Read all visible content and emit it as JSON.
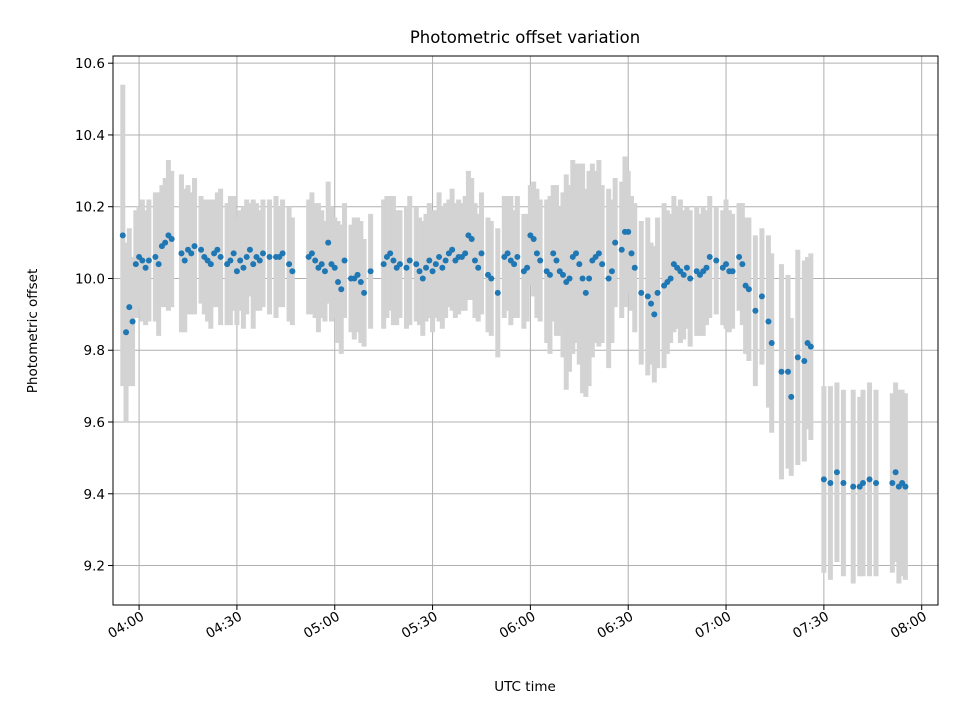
{
  "chart_data": {
    "type": "scatter",
    "title": "Photometric offset variation",
    "xlabel": "UTC time",
    "ylabel": "Photometric offset",
    "x_unit": "UTC time (HH:MM)",
    "xlim": [
      "03:52",
      "08:05"
    ],
    "ylim": [
      9.09,
      10.62
    ],
    "xticks": [
      "04:00",
      "04:30",
      "05:00",
      "05:30",
      "06:00",
      "06:30",
      "07:00",
      "07:30",
      "08:00"
    ],
    "yticks": [
      9.2,
      9.4,
      9.6,
      9.8,
      10.0,
      10.2,
      10.4,
      10.6
    ],
    "ytick_labels": [
      "9.2",
      "9.4",
      "9.6",
      "9.8",
      "10.0",
      "10.2",
      "10.4",
      "10.6"
    ],
    "grid": true,
    "colors": {
      "points": "#1f77b4",
      "errorbars": "#d3d3d3",
      "grid": "#b0b0b0"
    },
    "series": [
      {
        "x": [
          "03:55",
          "03:56",
          "03:57",
          "03:58",
          "03:59",
          "04:00",
          "04:01",
          "04:02",
          "04:03",
          "04:05",
          "04:06",
          "04:07",
          "04:08",
          "04:09",
          "04:10",
          "04:13",
          "04:14",
          "04:15",
          "04:16",
          "04:17",
          "04:19",
          "04:20",
          "04:21",
          "04:22",
          "04:23",
          "04:24",
          "04:25",
          "04:27",
          "04:28",
          "04:29",
          "04:30",
          "04:31",
          "04:32",
          "04:33",
          "04:34",
          "04:35",
          "04:36",
          "04:37",
          "04:38",
          "04:40",
          "04:42",
          "04:43",
          "04:44",
          "04:46",
          "04:47",
          "04:52",
          "04:53",
          "04:54",
          "04:55",
          "04:56",
          "04:57",
          "04:58",
          "04:59",
          "05:00",
          "05:01",
          "05:02",
          "05:03",
          "05:05",
          "05:06",
          "05:07",
          "05:08",
          "05:09",
          "05:11",
          "05:15",
          "05:16",
          "05:17",
          "05:18",
          "05:19",
          "05:20",
          "05:22",
          "05:23",
          "05:25",
          "05:26",
          "05:27",
          "05:28",
          "05:29",
          "05:30",
          "05:31",
          "05:32",
          "05:33",
          "05:34",
          "05:35",
          "05:36",
          "05:37",
          "05:38",
          "05:39",
          "05:40",
          "05:41",
          "05:42",
          "05:43",
          "05:44",
          "05:45",
          "05:47",
          "05:48",
          "05:50"
        ],
        "y": [
          10.12,
          9.85,
          9.92,
          9.88,
          10.04,
          10.06,
          10.05,
          10.03,
          10.05,
          10.06,
          10.04,
          10.09,
          10.1,
          10.12,
          10.11,
          10.07,
          10.05,
          10.08,
          10.07,
          10.09,
          10.08,
          10.06,
          10.05,
          10.04,
          10.07,
          10.08,
          10.06,
          10.04,
          10.05,
          10.07,
          10.02,
          10.05,
          10.03,
          10.06,
          10.08,
          10.04,
          10.06,
          10.05,
          10.07,
          10.06,
          10.06,
          10.06,
          10.07,
          10.04,
          10.02,
          10.06,
          10.07,
          10.05,
          10.03,
          10.04,
          10.02,
          10.1,
          10.04,
          10.03,
          9.99,
          9.97,
          10.05,
          10.0,
          10.0,
          10.01,
          9.99,
          9.96,
          10.02,
          10.04,
          10.06,
          10.07,
          10.05,
          10.03,
          10.04,
          10.03,
          10.05,
          10.04,
          10.02,
          10.0,
          10.03,
          10.05,
          10.02,
          10.04,
          10.06,
          10.03,
          10.05,
          10.07,
          10.08,
          10.05,
          10.06,
          10.06,
          10.07,
          10.12,
          10.11,
          10.05,
          10.03,
          10.07,
          10.01,
          10.0,
          9.96
        ],
        "yerr": [
          0.42,
          0.25,
          0.22,
          0.18,
          0.15,
          0.14,
          0.17,
          0.16,
          0.17,
          0.18,
          0.2,
          0.17,
          0.18,
          0.21,
          0.19,
          0.22,
          0.2,
          0.18,
          0.17,
          0.19,
          0.15,
          0.16,
          0.17,
          0.18,
          0.15,
          0.16,
          0.19,
          0.17,
          0.18,
          0.16,
          0.15,
          0.14,
          0.17,
          0.16,
          0.13,
          0.18,
          0.15,
          0.14,
          0.15,
          0.16,
          0.17,
          0.14,
          0.15,
          0.16,
          0.15,
          0.16,
          0.17,
          0.16,
          0.18,
          0.15,
          0.14,
          0.17,
          0.16,
          0.14,
          0.17,
          0.18,
          0.16,
          0.15,
          0.17,
          0.16,
          0.17,
          0.15,
          0.16,
          0.18,
          0.17,
          0.16,
          0.18,
          0.16,
          0.15,
          0.17,
          0.18,
          0.16,
          0.15,
          0.16,
          0.15,
          0.16,
          0.17,
          0.15,
          0.18,
          0.17,
          0.16,
          0.15,
          0.17,
          0.16,
          0.16,
          0.15,
          0.16,
          0.18,
          0.17,
          0.16,
          0.15,
          0.17,
          0.16,
          0.16,
          0.18
        ]
      },
      {
        "x": [
          "05:52",
          "05:53",
          "05:54",
          "05:55",
          "05:56",
          "05:58",
          "05:59",
          "06:00",
          "06:01",
          "06:02",
          "06:03",
          "06:05",
          "06:06",
          "06:07",
          "06:08",
          "06:09",
          "06:10",
          "06:11",
          "06:12",
          "06:13",
          "06:14",
          "06:15",
          "06:16",
          "06:17",
          "06:18",
          "06:19",
          "06:20",
          "06:21",
          "06:22",
          "06:24",
          "06:25",
          "06:26",
          "06:28",
          "06:29",
          "06:30",
          "06:31",
          "06:32",
          "06:34",
          "06:36",
          "06:37",
          "06:38",
          "06:39",
          "06:41",
          "06:42",
          "06:43",
          "06:44",
          "06:45",
          "06:46",
          "06:47",
          "06:48",
          "06:49",
          "06:51",
          "06:52",
          "06:53",
          "06:54",
          "06:55",
          "06:57",
          "06:59",
          "07:00",
          "07:01",
          "07:02",
          "07:04",
          "07:05",
          "07:06",
          "07:07",
          "07:09",
          "07:11",
          "07:13",
          "07:14",
          "07:17",
          "07:19",
          "07:20",
          "07:22",
          "07:24",
          "07:25",
          "07:26",
          "07:30",
          "07:32",
          "07:34",
          "07:36",
          "07:39",
          "07:41",
          "07:42",
          "07:44",
          "07:46",
          "07:51",
          "07:52",
          "07:53",
          "07:54",
          "07:55"
        ],
        "y": [
          10.06,
          10.07,
          10.05,
          10.04,
          10.06,
          10.02,
          10.03,
          10.12,
          10.11,
          10.07,
          10.05,
          10.02,
          10.01,
          10.07,
          10.05,
          10.02,
          10.01,
          9.99,
          10.0,
          10.06,
          10.07,
          10.04,
          10.0,
          9.96,
          10.0,
          10.05,
          10.06,
          10.07,
          10.04,
          10.0,
          10.02,
          10.1,
          10.08,
          10.13,
          10.13,
          10.07,
          10.03,
          9.96,
          9.95,
          9.93,
          9.9,
          9.96,
          9.98,
          9.99,
          10.0,
          10.04,
          10.03,
          10.02,
          10.01,
          10.03,
          10.0,
          10.02,
          10.01,
          10.02,
          10.03,
          10.06,
          10.05,
          10.03,
          10.04,
          10.02,
          10.02,
          10.06,
          10.04,
          9.98,
          9.97,
          9.91,
          9.95,
          9.88,
          9.82,
          9.74,
          9.74,
          9.67,
          9.78,
          9.77,
          9.82,
          9.81,
          9.44,
          9.43,
          9.46,
          9.43,
          9.42,
          9.42,
          9.43,
          9.44,
          9.43,
          9.43,
          9.46,
          9.42,
          9.43,
          9.42
        ],
        "yerr": [
          0.17,
          0.16,
          0.18,
          0.15,
          0.17,
          0.16,
          0.15,
          0.14,
          0.16,
          0.18,
          0.17,
          0.2,
          0.22,
          0.19,
          0.21,
          0.18,
          0.23,
          0.3,
          0.26,
          0.27,
          0.25,
          0.28,
          0.32,
          0.29,
          0.3,
          0.27,
          0.24,
          0.26,
          0.22,
          0.25,
          0.2,
          0.18,
          0.19,
          0.21,
          0.17,
          0.16,
          0.18,
          0.2,
          0.22,
          0.17,
          0.19,
          0.21,
          0.23,
          0.2,
          0.18,
          0.19,
          0.17,
          0.2,
          0.18,
          0.17,
          0.19,
          0.18,
          0.17,
          0.18,
          0.16,
          0.17,
          0.15,
          0.16,
          0.18,
          0.17,
          0.16,
          0.15,
          0.17,
          0.19,
          0.2,
          0.21,
          0.19,
          0.24,
          0.25,
          0.3,
          0.27,
          0.22,
          0.3,
          0.28,
          0.24,
          0.26,
          0.26,
          0.27,
          0.25,
          0.26,
          0.27,
          0.25,
          0.26,
          0.27,
          0.26,
          0.25,
          0.25,
          0.27,
          0.26,
          0.26
        ]
      }
    ]
  }
}
